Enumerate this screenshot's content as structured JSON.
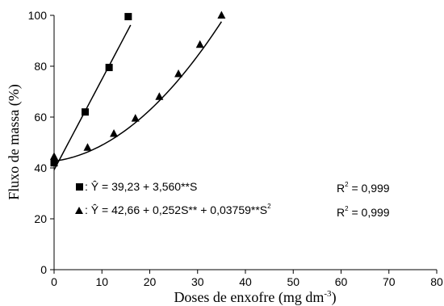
{
  "chart_data": {
    "type": "scatter",
    "xlabel": "Doses de enxofre (mg dm",
    "xlabel_sup": "-3",
    "xlabel_end": ")",
    "ylabel": "Fluxo de massa (%)",
    "xlim": [
      0,
      80
    ],
    "ylim": [
      0,
      100
    ],
    "xticks": [
      "0",
      "10",
      "20",
      "30",
      "40",
      "50",
      "60",
      "70",
      "80"
    ],
    "yticks": [
      "0",
      "20",
      "40",
      "60",
      "80",
      "100"
    ],
    "grid": false,
    "series": [
      {
        "marker": "square",
        "x": [
          0,
          6.5,
          11.5,
          15.5
        ],
        "y": [
          42,
          62,
          79.5,
          99.5
        ],
        "fit": {
          "type": "linear",
          "a": 39.23,
          "b": 3.56,
          "xmax": 16
        },
        "equation_text": ": Ŷ = 39,23 + 3,560**S",
        "r2_text": "R",
        "r2_sup": "2",
        "r2_value": " = 0,999"
      },
      {
        "marker": "triangle",
        "x": [
          0,
          7,
          12.5,
          17,
          22,
          26,
          30.5,
          35
        ],
        "y": [
          44.5,
          48,
          53.5,
          59.5,
          68,
          77,
          88.5,
          100
        ],
        "fit": {
          "type": "quadratic",
          "a": 42.66,
          "b": 0.252,
          "c": 0.03759,
          "xmax": 35
        },
        "equation_text": ": Ŷ = 42,66 + 0,252S** + 0,03759**S",
        "equation_sup": "2",
        "r2_text": "R",
        "r2_sup": "2",
        "r2_value": " = 0,999"
      }
    ]
  }
}
